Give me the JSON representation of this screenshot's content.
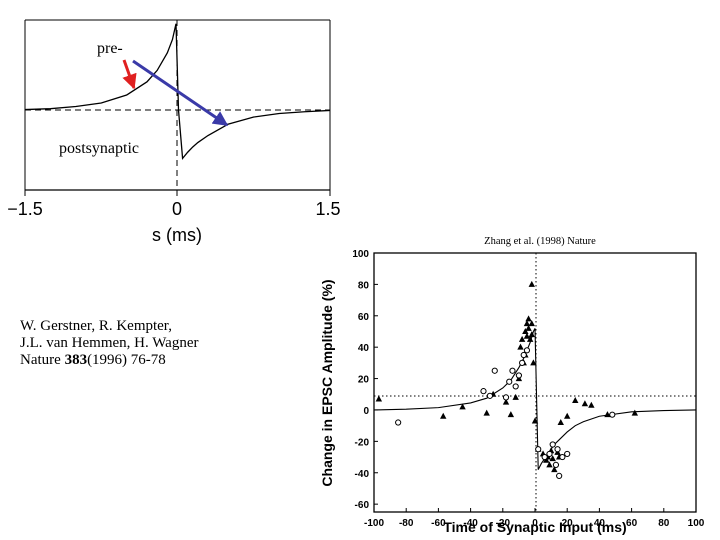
{
  "colors": {
    "pre_arrow": "#e02020",
    "post_arrow": "#3a3aa8",
    "curve": "#000000",
    "background": "#ffffff"
  },
  "chart_data": [
    {
      "type": "line",
      "title": "",
      "xlabel": "s (ms)",
      "ylabel": "",
      "xlim": [
        -1.5,
        1.5
      ],
      "x_tick_labels": [
        "−1.5",
        "0",
        "1.5"
      ],
      "y_axis_values": "not labeled",
      "annotations": [
        {
          "text": "pre-",
          "arrow_color": "#e02020",
          "points_to": "positive lobe"
        },
        {
          "text": "postsynaptic",
          "arrow_color": "#3a3aa8",
          "points_to": "negative lobe"
        }
      ],
      "series": [
        {
          "x": [
            -1.5,
            -1.25,
            -1.0,
            -0.75,
            -0.5,
            -0.3,
            -0.2,
            -0.1,
            -0.05,
            0.0,
            0.05,
            0.1,
            0.15,
            0.2,
            0.3,
            0.5,
            0.75,
            1.0,
            1.25,
            1.5
          ],
          "y": [
            0.005,
            0.015,
            0.04,
            0.08,
            0.17,
            0.32,
            0.45,
            0.65,
            0.8,
            0.0,
            -0.55,
            -0.48,
            -0.42,
            -0.37,
            -0.29,
            -0.16,
            -0.08,
            -0.04,
            -0.02,
            -0.005
          ]
        }
      ]
    },
    {
      "type": "scatter",
      "title": "Zhang et al. (1998) Nature",
      "xlabel": "Time of Synaptic Input (ms)",
      "ylabel": "Change in EPSC Amplitude (%)",
      "xlim": [
        -100,
        100
      ],
      "ylim": [
        -65,
        100
      ],
      "x_ticks": [
        -100,
        -80,
        -60,
        -40,
        -20,
        0,
        20,
        40,
        60,
        80,
        100
      ],
      "y_ticks": [
        -60,
        -40,
        -20,
        0,
        20,
        40,
        60,
        80,
        100
      ],
      "grid": false,
      "reference_lines": [
        "x=0 dotted",
        "y=0 dotted"
      ],
      "series": [
        {
          "marker": "triangle",
          "x": [
            -97,
            -57,
            -45,
            -30,
            -26,
            -18,
            -15,
            -12,
            -10,
            -9,
            -8,
            -7,
            -6,
            -6,
            -5,
            -5,
            -4,
            -3,
            -4,
            -2,
            -2,
            -2,
            -1,
            0,
            2,
            5,
            7,
            8,
            9,
            10,
            11,
            12,
            14,
            15,
            16,
            20,
            25,
            31,
            35,
            45,
            62
          ],
          "y": [
            7,
            -4,
            2,
            -2,
            10,
            5,
            -3,
            8,
            20,
            40,
            45,
            30,
            50,
            35,
            47,
            55,
            58,
            45,
            52,
            48,
            55,
            80,
            30,
            -7,
            -25,
            -28,
            -32,
            -30,
            -35,
            -26,
            -31,
            -38,
            -27,
            -30,
            -8,
            -4,
            6,
            4,
            3,
            -3,
            -2
          ]
        },
        {
          "marker": "circle",
          "x": [
            -85,
            -32,
            -28,
            -25,
            -18,
            -16,
            -14,
            -12,
            -10,
            -8,
            -7,
            -5,
            2,
            6,
            9,
            11,
            13,
            14,
            15,
            17,
            20,
            48
          ],
          "y": [
            -8,
            12,
            9,
            25,
            8,
            18,
            25,
            15,
            22,
            30,
            35,
            38,
            -25,
            -30,
            -28,
            -22,
            -35,
            -25,
            -42,
            -30,
            -28,
            -3
          ]
        },
        {
          "type": "fit-line",
          "x": [
            -100,
            -80,
            -60,
            -40,
            -30,
            -20,
            -15,
            -10,
            -7,
            -5,
            -3,
            -1,
            0,
            2,
            4,
            6,
            8,
            10,
            12,
            15,
            20,
            25,
            30,
            40,
            60,
            80,
            100
          ],
          "y": [
            0,
            0.5,
            1.5,
            4.5,
            7.5,
            14,
            19,
            27,
            33,
            38,
            43,
            50,
            52,
            -38,
            -34,
            -31,
            -28,
            -25,
            -22,
            -19,
            -14,
            -10,
            -7.5,
            -4,
            -1.2,
            -0.4,
            0
          ]
        }
      ]
    }
  ],
  "citation": {
    "line1": "W. Gerstner, R. Kempter,",
    "line2": "J.L. van Hemmen, H. Wagner",
    "journal": "Nature",
    "volume": "383",
    "pages": "(1996) 76-78"
  }
}
